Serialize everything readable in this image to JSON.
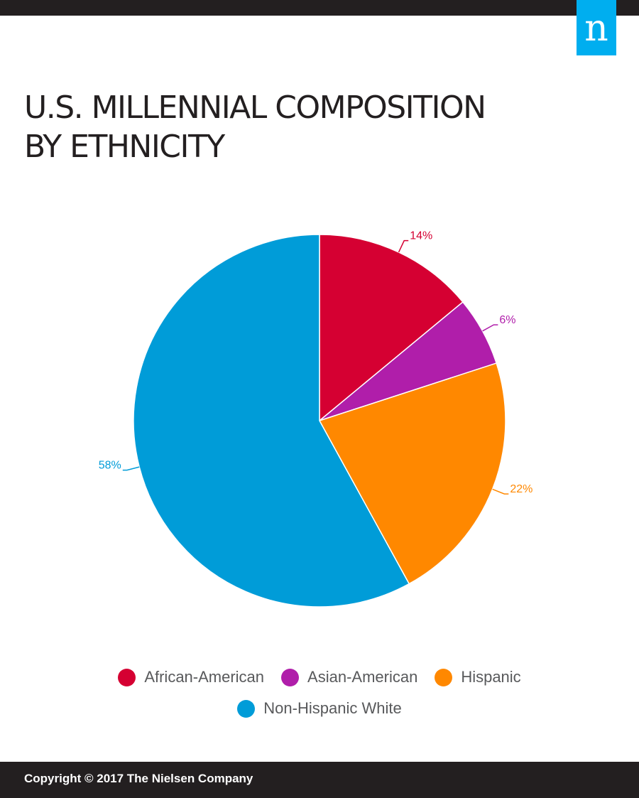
{
  "header": {
    "logo_letter": "n",
    "logo_color": "#00aeef"
  },
  "title_lines": [
    "U.S. MILLENNIAL COMPOSITION",
    "BY ETHNICITY"
  ],
  "chart_data": {
    "type": "pie",
    "title": "U.S. MILLENNIAL COMPOSITION BY ETHNICITY",
    "legend_position": "bottom",
    "slices": [
      {
        "name": "African-American",
        "value": 14,
        "label": "14%",
        "color": "#d50032"
      },
      {
        "name": "Asian-American",
        "value": 6,
        "label": "6%",
        "color": "#b01eaa"
      },
      {
        "name": "Hispanic",
        "value": 22,
        "label": "22%",
        "color": "#ff8800"
      },
      {
        "name": "Non-Hispanic White",
        "value": 58,
        "label": "58%",
        "color": "#009cd8"
      }
    ]
  },
  "footer": {
    "copyright": "Copyright © 2017 The Nielsen Company"
  }
}
